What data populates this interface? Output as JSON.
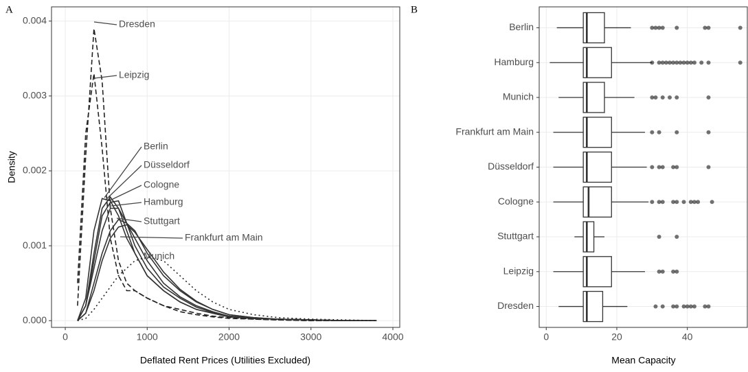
{
  "chart_data": [
    {
      "type": "line",
      "panel_label": "A",
      "x_label": "Deflated Rent Prices (Utilities Excluded)",
      "y_label": "Density",
      "x": [
        150,
        250,
        350,
        450,
        550,
        650,
        750,
        850,
        1000,
        1200,
        1400,
        1600,
        1800,
        2000,
        2300,
        2600,
        3000,
        3400,
        3800
      ],
      "series": [
        {
          "name": "Dresden",
          "color": "#222222",
          "dash": "dashed",
          "values": [
            0.0002,
            0.0022,
            0.0039,
            0.0032,
            0.0015,
            0.0008,
            0.0005,
            0.0004,
            0.0003,
            0.0002,
            0.00012,
            8e-05,
            5e-05,
            3e-05,
            2e-05,
            1e-05,
            0,
            0,
            0
          ]
        },
        {
          "name": "Leipzig",
          "color": "#222222",
          "dash": "dashed",
          "values": [
            0.0005,
            0.0025,
            0.0033,
            0.0023,
            0.0011,
            0.0006,
            0.0004,
            0.0004,
            0.0003,
            0.0002,
            0.00015,
            0.0001,
            6e-05,
            4e-05,
            2e-05,
            1e-05,
            0,
            0,
            0
          ]
        },
        {
          "name": "Berlin",
          "color": "#333333",
          "dash": "solid",
          "values": [
            0,
            0.0003,
            0.0012,
            0.00163,
            0.0016,
            0.0014,
            0.0011,
            0.0009,
            0.0006,
            0.0004,
            0.00025,
            0.00015,
            0.0001,
            5e-05,
            3e-05,
            2e-05,
            1e-05,
            0,
            0
          ]
        },
        {
          "name": "Düsseldorf",
          "color": "#333333",
          "dash": "solid",
          "values": [
            0,
            0.0002,
            0.0009,
            0.0015,
            0.00165,
            0.0015,
            0.0012,
            0.0009,
            0.0006,
            0.0004,
            0.00025,
            0.00015,
            0.0001,
            5e-05,
            3e-05,
            2e-05,
            1e-05,
            0,
            0
          ]
        },
        {
          "name": "Cologne",
          "color": "#333333",
          "dash": "solid",
          "values": [
            0,
            0.0002,
            0.0008,
            0.0014,
            0.00158,
            0.0016,
            0.0013,
            0.001,
            0.0007,
            0.00045,
            0.0003,
            0.00018,
            0.00011,
            6e-05,
            3e-05,
            2e-05,
            1e-05,
            0,
            0
          ]
        },
        {
          "name": "Hamburg",
          "color": "#333333",
          "dash": "solid",
          "values": [
            0,
            0.0002,
            0.0007,
            0.0012,
            0.0015,
            0.0015,
            0.0013,
            0.0011,
            0.0008,
            0.0005,
            0.00032,
            0.0002,
            0.00012,
            6e-05,
            3e-05,
            2e-05,
            1e-05,
            0,
            0
          ]
        },
        {
          "name": "Stuttgart",
          "color": "#333333",
          "dash": "solid",
          "values": [
            0,
            0.0001,
            0.0005,
            0.0009,
            0.0012,
            0.00135,
            0.0013,
            0.0012,
            0.0009,
            0.0006,
            0.0004,
            0.00025,
            0.00015,
            8e-05,
            4e-05,
            2e-05,
            1e-05,
            0,
            0
          ]
        },
        {
          "name": "Frankfurt am Main",
          "color": "#333333",
          "dash": "solid",
          "values": [
            0,
            0.0001,
            0.0004,
            0.0008,
            0.0011,
            0.00125,
            0.00128,
            0.00118,
            0.00095,
            0.00065,
            0.00042,
            0.00026,
            0.00015,
            8e-05,
            4e-05,
            2e-05,
            1e-05,
            0,
            0
          ]
        },
        {
          "name": "Munich",
          "color": "#222222",
          "dash": "dotted",
          "values": [
            0,
            3e-05,
            0.00015,
            0.0003,
            0.00045,
            0.0006,
            0.0007,
            0.0008,
            0.00085,
            0.0008,
            0.0006,
            0.0004,
            0.00025,
            0.00015,
            8e-05,
            4e-05,
            2e-05,
            1e-05,
            0
          ]
        }
      ],
      "xlim": [
        -168,
        4084
      ],
      "xticks": [
        0,
        1000,
        2000,
        3000,
        4000
      ],
      "ylim": [
        -9e-05,
        0.00419
      ],
      "yticks": [
        {
          "value": 0,
          "label": "0.000"
        },
        {
          "value": 0.001,
          "label": "0.001"
        },
        {
          "value": 0.002,
          "label": "0.002"
        },
        {
          "value": 0.003,
          "label": "0.003"
        },
        {
          "value": 0.004,
          "label": "0.004"
        }
      ],
      "grid": true
    },
    {
      "type": "box",
      "panel_label": "B",
      "x_label": "Mean Capacity",
      "categories": [
        "Berlin",
        "Hamburg",
        "Munich",
        "Frankfurt am Main",
        "Düsseldorf",
        "Cologne",
        "Stuttgart",
        "Leipzig",
        "Dresden"
      ],
      "low": [
        3,
        1,
        3.5,
        2,
        2,
        2,
        8,
        2,
        3.5
      ],
      "q1": [
        10.5,
        10.5,
        10.5,
        10.5,
        10.5,
        10.5,
        10.5,
        10.5,
        10.5
      ],
      "median": [
        11.5,
        11.5,
        11.5,
        11.5,
        11.5,
        12,
        11.5,
        11.5,
        11.5
      ],
      "q3": [
        16.5,
        18.5,
        16.5,
        18.5,
        18.5,
        18.5,
        13.5,
        18.5,
        16
      ],
      "high": [
        24,
        30,
        25,
        28,
        28.5,
        29,
        16.5,
        28,
        23
      ],
      "outliers": [
        [
          30,
          31,
          32,
          33,
          37,
          45,
          46,
          55
        ],
        [
          30,
          32,
          33,
          34,
          35,
          36,
          37,
          38,
          39,
          40,
          41,
          42,
          44,
          46,
          55
        ],
        [
          30,
          31,
          33,
          35,
          37,
          46
        ],
        [
          30,
          32,
          37,
          46
        ],
        [
          30,
          32,
          33,
          36,
          37,
          46
        ],
        [
          30,
          32,
          33,
          36,
          37,
          39,
          41,
          42,
          43,
          47
        ],
        [
          32,
          37
        ],
        [
          32,
          33,
          36,
          37
        ],
        [
          31,
          33,
          36,
          37,
          39,
          40,
          41,
          42,
          45,
          46
        ]
      ],
      "color": "#333333",
      "xlim": [
        -2,
        57
      ],
      "xticks": [
        0,
        20,
        40
      ],
      "grid": true
    }
  ]
}
